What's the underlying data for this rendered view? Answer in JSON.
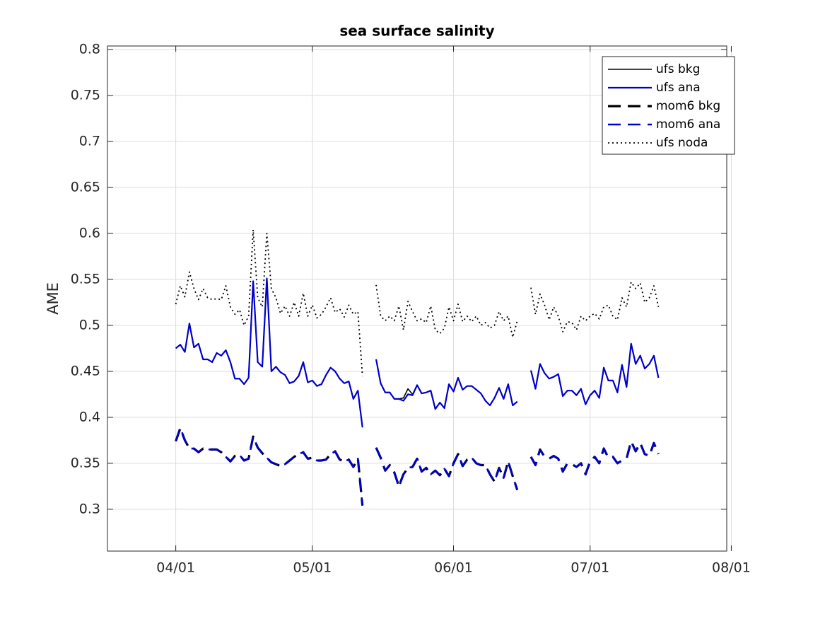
{
  "chart_data": {
    "type": "line",
    "title": "sea surface salinity",
    "ylabel": "AME",
    "x": [
      "04/01",
      "04/02",
      "04/03",
      "04/04",
      "04/05",
      "04/06",
      "04/07",
      "04/08",
      "04/09",
      "04/10",
      "04/11",
      "04/12",
      "04/13",
      "04/14",
      "04/15",
      "04/16",
      "04/17",
      "04/18",
      "04/19",
      "04/20",
      "04/21",
      "04/22",
      "04/23",
      "04/24",
      "04/25",
      "04/26",
      "04/27",
      "04/28",
      "04/29",
      "04/30",
      "05/01",
      "05/02",
      "05/03",
      "05/04",
      "05/05",
      "05/06",
      "05/07",
      "05/08",
      "05/09",
      "05/10",
      "05/11",
      "05/12",
      "05/13",
      "05/14",
      "05/15",
      "05/16",
      "05/17",
      "05/18",
      "05/19",
      "05/20",
      "05/21",
      "05/22",
      "05/23",
      "05/24",
      "05/25",
      "05/26",
      "05/27",
      "05/28",
      "05/29",
      "05/30",
      "05/31",
      "06/01",
      "06/02",
      "06/03",
      "06/04",
      "06/05",
      "06/06",
      "06/07",
      "06/08",
      "06/09",
      "06/10",
      "06/11",
      "06/12",
      "06/13",
      "06/14",
      "06/15",
      "06/16",
      "06/17",
      "06/18",
      "06/19",
      "06/20",
      "06/21",
      "06/22",
      "06/23",
      "06/24",
      "06/25",
      "06/26",
      "06/27",
      "06/28",
      "06/29",
      "06/30",
      "07/01",
      "07/02",
      "07/03",
      "07/04",
      "07/05",
      "07/06",
      "07/07",
      "07/08",
      "07/09",
      "07/10",
      "07/11",
      "07/12",
      "07/13",
      "07/14",
      "07/15",
      "07/16"
    ],
    "xlim": [
      "03/17",
      "07/31"
    ],
    "xticks": [
      "04/01",
      "05/01",
      "06/01",
      "07/01",
      "08/01"
    ],
    "ylim": [
      0.2545,
      0.8038
    ],
    "yticks": [
      0.3,
      0.35,
      0.4,
      0.45,
      0.5,
      0.55,
      0.6,
      0.65,
      0.7,
      0.75,
      0.8
    ],
    "grid": true,
    "legend": "northeast",
    "series": [
      {
        "name": "ufs bkg",
        "color": "#000000",
        "linestyle": "solid",
        "values": [
          0.475,
          0.479,
          0.471,
          0.502,
          0.476,
          0.48,
          0.463,
          0.463,
          0.46,
          0.47,
          0.467,
          0.473,
          0.46,
          0.442,
          0.442,
          0.436,
          0.443,
          0.548,
          0.46,
          0.455,
          0.551,
          0.45,
          0.455,
          0.449,
          0.446,
          0.437,
          0.439,
          0.445,
          0.46,
          0.438,
          0.44,
          0.434,
          0.436,
          0.446,
          0.454,
          0.45,
          0.442,
          0.437,
          0.439,
          0.42,
          0.429,
          0.389,
          null,
          null,
          0.463,
          0.437,
          0.427,
          0.427,
          0.42,
          0.42,
          0.421,
          0.431,
          0.425,
          0.435,
          0.426,
          0.427,
          0.429,
          0.409,
          0.416,
          0.41,
          0.436,
          0.428,
          0.443,
          0.43,
          0.434,
          0.434,
          0.43,
          0.426,
          0.418,
          0.413,
          0.421,
          0.432,
          0.42,
          0.436,
          0.413,
          0.417,
          null,
          null,
          0.451,
          0.431,
          0.458,
          0.448,
          0.442,
          0.444,
          0.447,
          0.423,
          0.429,
          0.429,
          0.424,
          0.431,
          0.414,
          0.424,
          0.429,
          0.421,
          0.454,
          0.44,
          0.44,
          0.427,
          0.457,
          0.433,
          0.48,
          0.458,
          0.467,
          0.453,
          0.458,
          0.467,
          0.443
        ]
      },
      {
        "name": "ufs ana",
        "color": "#0000cd",
        "linestyle": "solid",
        "values": [
          0.475,
          0.479,
          0.471,
          0.502,
          0.476,
          0.48,
          0.463,
          0.463,
          0.46,
          0.47,
          0.467,
          0.473,
          0.46,
          0.442,
          0.442,
          0.436,
          0.443,
          0.548,
          0.46,
          0.455,
          0.551,
          0.45,
          0.455,
          0.449,
          0.446,
          0.437,
          0.439,
          0.445,
          0.46,
          0.438,
          0.44,
          0.434,
          0.436,
          0.446,
          0.454,
          0.45,
          0.442,
          0.437,
          0.439,
          0.42,
          0.429,
          0.389,
          null,
          null,
          0.463,
          0.437,
          0.427,
          0.427,
          0.42,
          0.42,
          0.418,
          0.425,
          0.424,
          0.435,
          0.426,
          0.427,
          0.429,
          0.409,
          0.416,
          0.41,
          0.436,
          0.428,
          0.443,
          0.43,
          0.434,
          0.434,
          0.43,
          0.426,
          0.418,
          0.413,
          0.421,
          0.432,
          0.42,
          0.436,
          0.413,
          0.417,
          null,
          null,
          0.451,
          0.431,
          0.458,
          0.448,
          0.442,
          0.444,
          0.447,
          0.423,
          0.429,
          0.429,
          0.424,
          0.431,
          0.414,
          0.424,
          0.429,
          0.421,
          0.454,
          0.44,
          0.44,
          0.427,
          0.457,
          0.433,
          0.48,
          0.458,
          0.467,
          0.453,
          0.458,
          0.467,
          0.443
        ]
      },
      {
        "name": "mom6 bkg",
        "color": "#000000",
        "linestyle": "dashed",
        "values": [
          0.374,
          0.388,
          0.375,
          0.366,
          0.366,
          0.362,
          0.366,
          0.365,
          0.365,
          0.365,
          0.362,
          0.357,
          0.352,
          0.358,
          0.359,
          0.353,
          0.355,
          0.379,
          0.367,
          0.361,
          0.356,
          0.351,
          0.349,
          0.347,
          0.349,
          0.353,
          0.357,
          0.36,
          0.362,
          0.355,
          0.356,
          0.353,
          0.353,
          0.354,
          0.36,
          0.363,
          0.354,
          0.352,
          0.354,
          0.346,
          0.355,
          0.304,
          null,
          null,
          0.367,
          0.356,
          0.342,
          0.348,
          0.34,
          0.325,
          0.338,
          0.345,
          0.346,
          0.355,
          0.341,
          0.345,
          0.338,
          0.342,
          0.337,
          0.344,
          0.336,
          0.35,
          0.36,
          0.347,
          0.354,
          0.356,
          0.35,
          0.348,
          0.348,
          0.338,
          0.33,
          0.345,
          0.334,
          0.352,
          0.336,
          0.321,
          null,
          null,
          0.357,
          0.348,
          0.365,
          0.357,
          0.355,
          0.358,
          0.355,
          0.341,
          0.35,
          0.349,
          0.346,
          0.35,
          0.338,
          0.352,
          0.357,
          0.35,
          0.366,
          0.356,
          0.357,
          0.35,
          0.353,
          0.355,
          0.374,
          0.363,
          0.372,
          0.36,
          0.358,
          0.372,
          0.36
        ]
      },
      {
        "name": "mom6 ana",
        "color": "#0000cd",
        "linestyle": "dashed",
        "values": [
          0.374,
          0.389,
          0.375,
          0.366,
          0.366,
          0.362,
          0.366,
          0.365,
          0.365,
          0.365,
          0.362,
          0.357,
          0.352,
          0.358,
          0.359,
          0.353,
          0.355,
          0.379,
          0.367,
          0.361,
          0.356,
          0.351,
          0.349,
          0.347,
          0.349,
          0.353,
          0.357,
          0.36,
          0.362,
          0.355,
          0.356,
          0.353,
          0.353,
          0.354,
          0.36,
          0.363,
          0.354,
          0.352,
          0.354,
          0.346,
          0.355,
          0.304,
          null,
          null,
          0.367,
          0.356,
          0.342,
          0.348,
          0.34,
          0.324,
          0.338,
          0.345,
          0.346,
          0.355,
          0.341,
          0.345,
          0.338,
          0.342,
          0.337,
          0.344,
          0.336,
          0.35,
          0.36,
          0.347,
          0.354,
          0.356,
          0.35,
          0.348,
          0.348,
          0.338,
          0.33,
          0.345,
          0.334,
          0.352,
          0.336,
          0.321,
          null,
          null,
          0.357,
          0.348,
          0.365,
          0.357,
          0.355,
          0.358,
          0.355,
          0.341,
          0.35,
          0.349,
          0.346,
          0.35,
          0.338,
          0.352,
          0.357,
          0.35,
          0.366,
          0.356,
          0.357,
          0.35,
          0.353,
          0.355,
          0.374,
          0.363,
          0.372,
          0.36,
          0.358,
          0.372,
          0.36
        ]
      },
      {
        "name": "ufs noda",
        "color": "#000000",
        "linestyle": "dotted",
        "values": [
          0.523,
          0.543,
          0.531,
          0.558,
          0.54,
          0.528,
          0.54,
          0.53,
          0.528,
          0.529,
          0.528,
          0.543,
          0.52,
          0.512,
          0.517,
          0.5,
          0.51,
          0.604,
          0.53,
          0.52,
          0.6,
          0.54,
          0.53,
          0.513,
          0.521,
          0.51,
          0.525,
          0.51,
          0.535,
          0.51,
          0.522,
          0.508,
          0.512,
          0.52,
          0.53,
          0.514,
          0.518,
          0.509,
          0.522,
          0.512,
          0.515,
          0.445,
          null,
          null,
          0.544,
          0.51,
          0.505,
          0.51,
          0.505,
          0.521,
          0.495,
          0.526,
          0.515,
          0.505,
          0.507,
          0.503,
          0.521,
          0.495,
          0.491,
          0.497,
          0.52,
          0.505,
          0.523,
          0.504,
          0.51,
          0.504,
          0.51,
          0.5,
          0.503,
          0.497,
          0.5,
          0.515,
          0.505,
          0.51,
          0.487,
          0.505,
          null,
          null,
          0.541,
          0.512,
          0.534,
          0.522,
          0.506,
          0.52,
          0.51,
          0.493,
          0.504,
          0.503,
          0.495,
          0.51,
          0.505,
          0.51,
          0.513,
          0.507,
          0.52,
          0.522,
          0.51,
          0.506,
          0.53,
          0.52,
          0.547,
          0.54,
          0.546,
          0.525,
          0.53,
          0.543,
          0.52
        ]
      }
    ]
  }
}
